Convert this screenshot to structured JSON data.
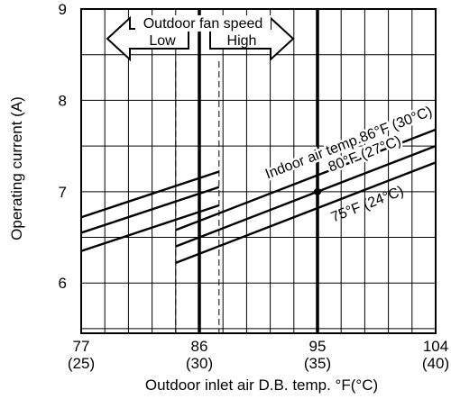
{
  "chart_data": {
    "type": "line",
    "xlabel": "Outdoor inlet air D.B. temp. °F(°C)",
    "ylabel": "Operating current (A)",
    "xlim": [
      77,
      104
    ],
    "ylim": [
      5.45,
      9.0
    ],
    "grid": true,
    "x_ticks": [
      {
        "value": 77,
        "label": "77",
        "sub": "(25)"
      },
      {
        "value": 86,
        "label": "86",
        "sub": "(30)"
      },
      {
        "value": 95,
        "label": "95",
        "sub": "(35)"
      },
      {
        "value": 104,
        "label": "104",
        "sub": "(40)"
      }
    ],
    "y_ticks": [
      {
        "value": 6,
        "label": "6"
      },
      {
        "value": 7,
        "label": "7"
      },
      {
        "value": 8,
        "label": "8"
      },
      {
        "value": 9,
        "label": "9"
      }
    ],
    "series": [
      {
        "name": "Indoor air temp.86°F (30°C)",
        "segments": [
          {
            "x": [
              77,
              87.5
            ],
            "y": [
              6.72,
              7.22
            ]
          },
          {
            "x": [
              84.2,
              104
            ],
            "y": [
              6.58,
              7.68
            ]
          }
        ]
      },
      {
        "name": "80°F (27°C)",
        "segments": [
          {
            "x": [
              77,
              87.5
            ],
            "y": [
              6.55,
              7.05
            ]
          },
          {
            "x": [
              84.2,
              104
            ],
            "y": [
              6.4,
              7.5
            ]
          }
        ]
      },
      {
        "name": "75°F (24°C)",
        "segments": [
          {
            "x": [
              77,
              87.5
            ],
            "y": [
              6.35,
              6.85
            ]
          },
          {
            "x": [
              84.2,
              104
            ],
            "y": [
              6.22,
              7.32
            ]
          }
        ]
      }
    ],
    "reference_lines": {
      "bold_x": [
        86,
        95
      ],
      "dashed_x": [
        84.2,
        87.5
      ]
    },
    "marker": {
      "x": 95,
      "y": 7.0
    },
    "fan_speed": {
      "title": "Outdoor fan speed",
      "low": "Low",
      "high": "High"
    }
  }
}
